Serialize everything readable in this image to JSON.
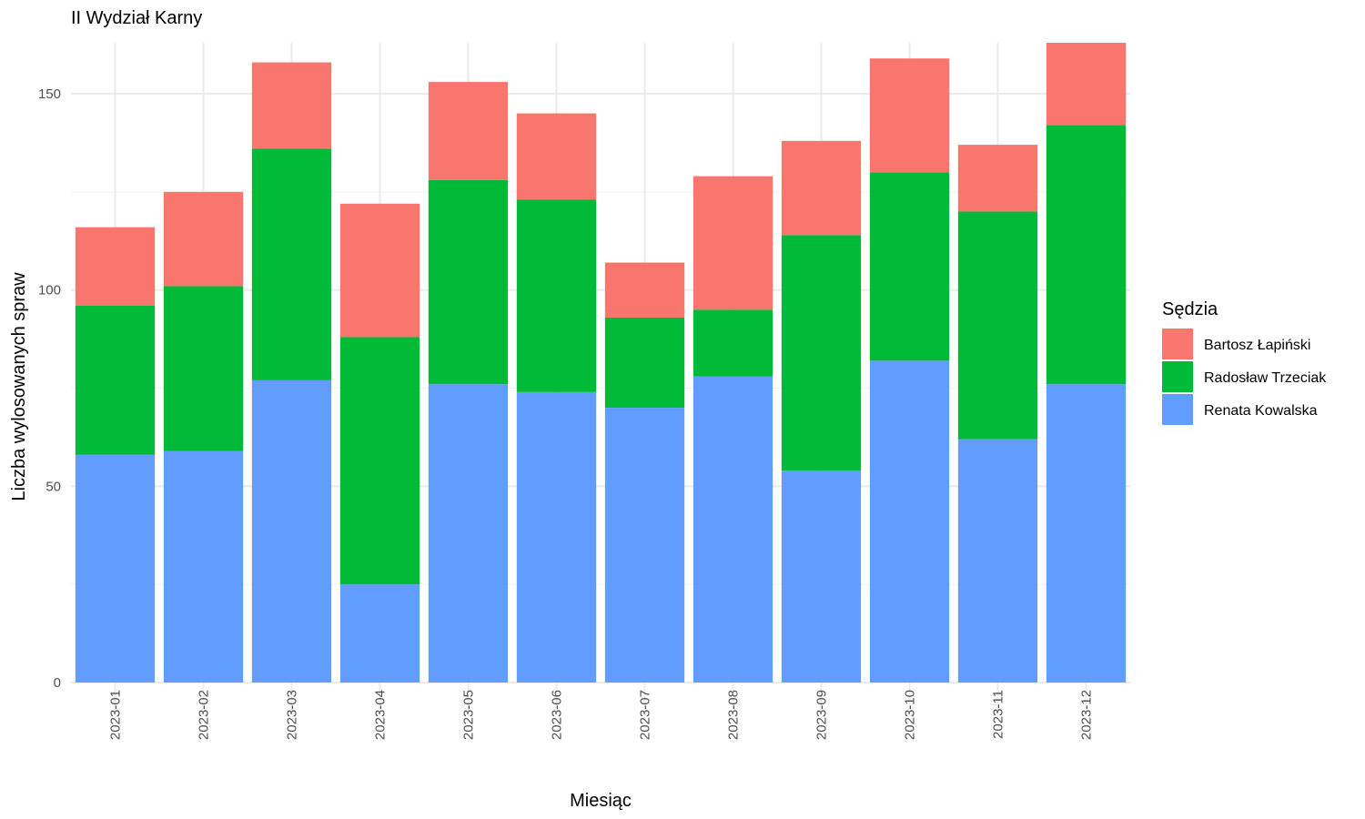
{
  "chart_data": {
    "type": "bar",
    "stacked": true,
    "title": "II Wydział Karny",
    "xlabel": "Miesiąc",
    "ylabel": "Liczba wylosowanych spraw",
    "ylim": [
      0,
      163
    ],
    "yticks": [
      0,
      50,
      100,
      150
    ],
    "grid": true,
    "legend_position": "right",
    "legend_title": "Sędzia",
    "categories": [
      "2023-01",
      "2023-02",
      "2023-03",
      "2023-04",
      "2023-05",
      "2023-06",
      "2023-07",
      "2023-08",
      "2023-09",
      "2023-10",
      "2023-11",
      "2023-12"
    ],
    "series": [
      {
        "name": "Bartosz Łapiński",
        "color": "#F8766D",
        "values": [
          20,
          24,
          22,
          34,
          25,
          22,
          14,
          34,
          24,
          29,
          17,
          21
        ]
      },
      {
        "name": "Radosław Trzeciak",
        "color": "#00BA38",
        "values": [
          38,
          42,
          59,
          63,
          52,
          49,
          23,
          17,
          60,
          48,
          58,
          66
        ]
      },
      {
        "name": "Renata Kowalska",
        "color": "#619CFF",
        "values": [
          58,
          59,
          77,
          25,
          76,
          74,
          70,
          78,
          54,
          82,
          62,
          76
        ]
      }
    ],
    "stack_order_bottom_to_top": [
      "Renata Kowalska",
      "Radosław Trzeciak",
      "Bartosz Łapiński"
    ]
  }
}
